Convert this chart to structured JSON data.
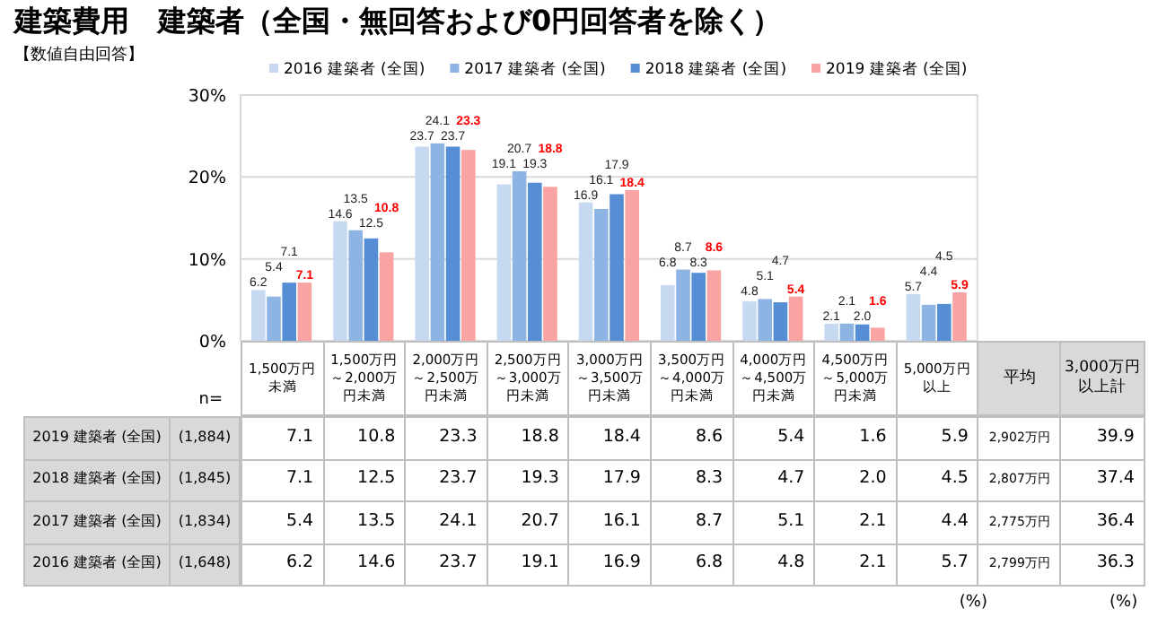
{
  "chart_data": {
    "type": "bar",
    "title": "建築費用　建築者（全国・無回答および0円回答者を除く）",
    "subtitle": "【数値自由回答】",
    "categories": [
      "1,500万円未満",
      "1,500万円～2,000万円未満",
      "2,000万円～2,500万円未満",
      "2,500万円～3,000万円未満",
      "3,000万円～3,500万円未満",
      "3,500万円～4,000万円未満",
      "4,000万円～4,500万円未満",
      "4,500万円～5,000万円未満",
      "5,000万円以上"
    ],
    "series": [
      {
        "name": "2016 建築者 (全国)",
        "color": "#c6d9f1",
        "values": [
          6.2,
          14.6,
          23.7,
          19.1,
          16.9,
          6.8,
          4.8,
          2.1,
          5.7
        ],
        "value_labels": [
          "6.2",
          "14.6",
          "23.7",
          "19.1",
          "16.9",
          "6.8",
          "4.8",
          "2.1",
          "5.7"
        ]
      },
      {
        "name": "2017 建築者 (全国)",
        "color": "#8db4e2",
        "values": [
          5.4,
          13.5,
          24.1,
          20.7,
          16.1,
          8.7,
          5.1,
          2.1,
          4.4
        ],
        "value_labels": [
          "5.4",
          "13.5",
          "24.1",
          "20.7",
          "16.1",
          "8.7",
          "5.1",
          "2.1",
          "4.4"
        ]
      },
      {
        "name": "2018 建築者 (全国)",
        "color": "#558ed5",
        "values": [
          7.1,
          12.5,
          23.7,
          19.3,
          17.9,
          8.3,
          4.7,
          2.0,
          4.5
        ],
        "value_labels": [
          "7.1",
          "12.5",
          "23.7",
          "19.3",
          "17.9",
          "8.3",
          "4.7",
          "2.0",
          "4.5"
        ]
      },
      {
        "name": "2019 建築者 (全国)",
        "color": "#f9a3a3",
        "values": [
          7.1,
          10.8,
          23.3,
          18.8,
          18.4,
          8.6,
          5.4,
          1.6,
          5.9
        ],
        "value_labels": [
          "7.1",
          "10.8",
          "23.3",
          "18.8",
          "18.4",
          "8.6",
          "5.4",
          "1.6",
          "5.9"
        ]
      }
    ],
    "ylim": [
      0,
      30
    ],
    "yticks": [
      {
        "value": 0,
        "label": "0%"
      },
      {
        "value": 10,
        "label": "10%"
      },
      {
        "value": 20,
        "label": "20%"
      },
      {
        "value": 30,
        "label": "30%"
      }
    ],
    "grid": "y",
    "legend": "top",
    "annotations": [
      "n=",
      "平均",
      "3,000万円以上計",
      "(1,648)",
      "(1,834)",
      "(1,845)",
      "(1,884)",
      "2,799万円",
      "2,775万円",
      "2,807万円",
      "2,902万円",
      "36.3",
      "36.4",
      "37.4",
      "39.9",
      "(%)",
      "(%)"
    ]
  }
}
